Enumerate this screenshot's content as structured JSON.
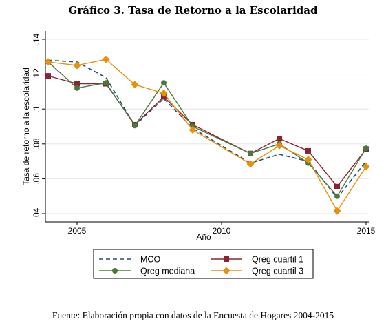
{
  "title": "Gráfico 3. Tasa de Retorno a la Escolaridad",
  "source": "Fuente: Elaboración propia con datos de la Encuesta de Hogares 2004-2015",
  "chart_data": {
    "type": "line",
    "x": [
      2004,
      2005,
      2006,
      2007,
      2008,
      2009,
      2010,
      2011,
      2012,
      2013,
      2014,
      2015
    ],
    "xlabel": "Año",
    "ylabel": "Tasa de retorno a la escolaridad",
    "xlim": [
      2004,
      2015
    ],
    "ylim": [
      0.04,
      0.14
    ],
    "xticks": [
      2005,
      2010,
      2015
    ],
    "xtick_labels": [
      "2005",
      "2010",
      "2015"
    ],
    "yticks": [
      0.04,
      0.06,
      0.08,
      0.1,
      0.12,
      0.14
    ],
    "ytick_labels": [
      ".04",
      ".06",
      ".08",
      ".1",
      ".12",
      ".14"
    ],
    "grid": true,
    "legend_position": "bottom",
    "series": [
      {
        "name": "MCO",
        "color": "#1f4e79",
        "style": "dashed",
        "marker": "none",
        "values": [
          0.128,
          0.127,
          0.118,
          0.0905,
          0.106,
          0.089,
          null,
          0.069,
          0.074,
          0.07,
          0.049,
          0.07
        ]
      },
      {
        "name": "Qreg cuartil 1",
        "color": "#8b2332",
        "style": "solid",
        "marker": "square",
        "values": [
          0.119,
          0.1145,
          0.1145,
          0.091,
          0.107,
          0.091,
          null,
          0.0745,
          0.083,
          0.076,
          0.0555,
          0.077
        ]
      },
      {
        "name": "Qreg mediana",
        "color": "#4a7a3a",
        "style": "solid",
        "marker": "circle",
        "values": [
          0.127,
          0.112,
          0.115,
          0.0905,
          0.115,
          0.09,
          null,
          0.0745,
          0.08,
          0.069,
          0.05,
          0.0775
        ]
      },
      {
        "name": "Qreg cuartil 3",
        "color": "#e8900a",
        "style": "solid",
        "marker": "diamond",
        "values": [
          0.127,
          0.125,
          0.1285,
          0.114,
          0.109,
          0.088,
          null,
          0.0685,
          0.079,
          0.071,
          0.0415,
          0.067
        ]
      }
    ]
  }
}
